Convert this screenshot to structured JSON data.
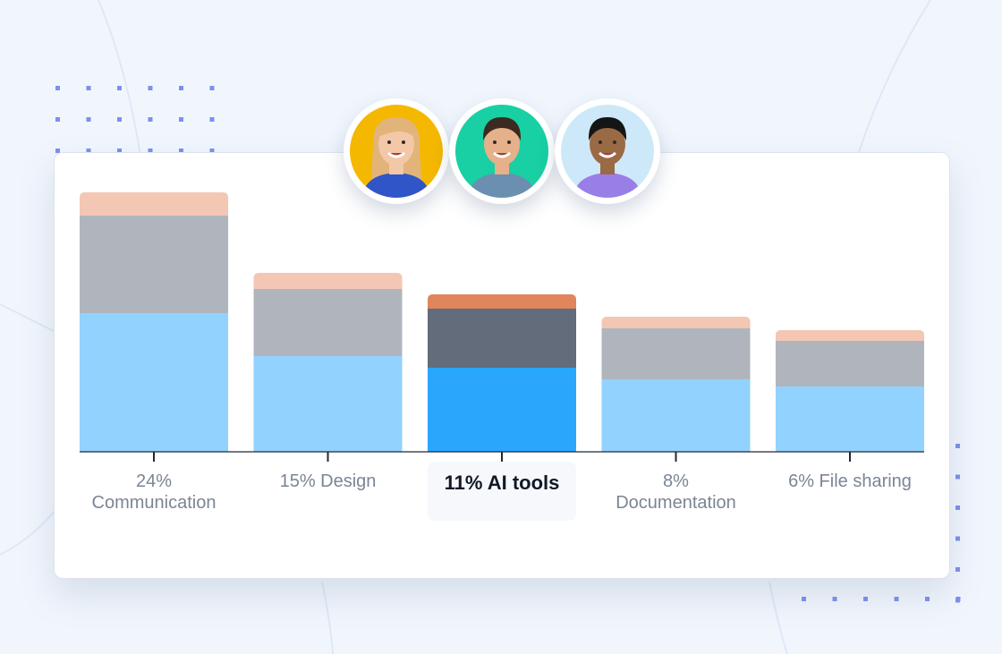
{
  "colors": {
    "background": "#f1f6fd",
    "accent_dots": "#7d8ff0",
    "segment_top": "#f3c7b3",
    "segment_mid": "#b0b5bd",
    "segment_base": "#92d2fe",
    "highlight_top": "#e0855c",
    "highlight_mid": "#626c7a",
    "highlight_base": "#2aa7fd"
  },
  "avatars": [
    {
      "name": "woman-avatar",
      "bg": "#f5b800",
      "hair": "#e2b47a",
      "skin": "#f2c8a8",
      "shirt": "#2f55c8"
    },
    {
      "name": "man-avatar-1",
      "bg": "#18d0a4",
      "hair": "#3b2a20",
      "skin": "#e6b08a",
      "shirt": "#6a8fb0"
    },
    {
      "name": "man-avatar-2",
      "bg": "#cde8f8",
      "hair": "#151515",
      "skin": "#9a6a45",
      "shirt": "#9a7ee8"
    }
  ],
  "chart_data": {
    "type": "bar",
    "stacked": true,
    "categories": [
      "24% Communication",
      "15% Design",
      "11% AI tools",
      "8% Documentation",
      "6% File sharing"
    ],
    "label_lines": [
      [
        "24%",
        "Communication"
      ],
      [
        "15% Design"
      ],
      [
        "11% AI tools"
      ],
      [
        "8%",
        "Documentation"
      ],
      [
        "6% File sharing"
      ]
    ],
    "highlighted_index": 2,
    "series": [
      {
        "values": [
          155,
          107,
          94,
          81,
          73
        ]
      },
      {
        "values": [
          109,
          75,
          66,
          57,
          51
        ]
      },
      {
        "values": [
          26,
          18,
          16,
          13,
          12
        ]
      }
    ],
    "ylim": [
      0,
      300
    ],
    "grid": false
  }
}
